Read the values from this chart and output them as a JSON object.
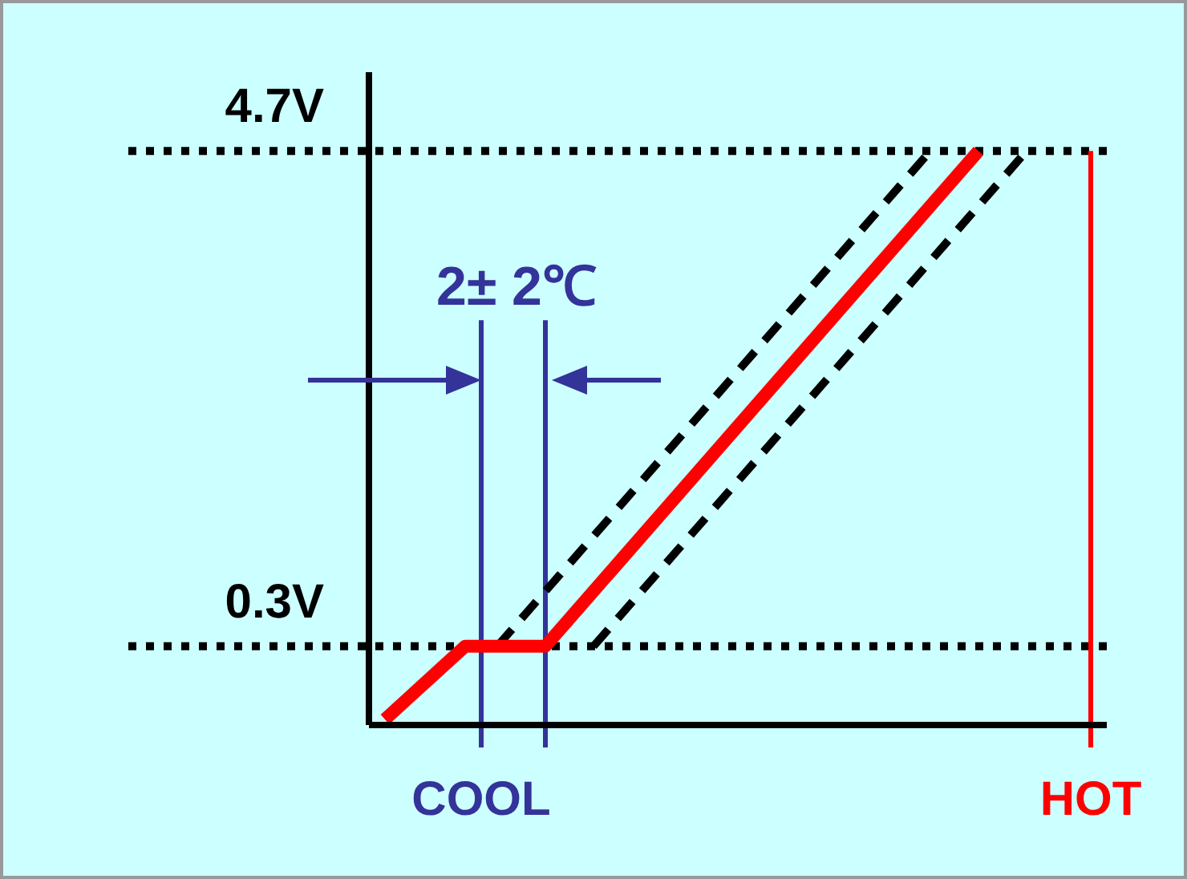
{
  "chart_data": {
    "type": "line",
    "annotations": [
      "2± 2℃"
    ],
    "categories": [
      null,
      null,
      null,
      null,
      null,
      null,
      null,
      "COOL",
      null,
      null,
      null,
      null,
      null,
      null,
      null,
      null,
      null,
      null,
      null,
      null,
      null,
      null,
      null,
      null,
      null,
      null,
      null,
      null,
      null,
      null,
      null,
      null,
      null,
      null,
      null,
      null,
      null,
      null,
      null,
      null,
      null,
      null,
      null,
      null,
      null,
      "HOT",
      null
    ],
    "ylim": [
      -0.4,
      5.4
    ],
    "yticks": [
      {
        "value": 0.3,
        "label": "0.3V"
      },
      {
        "value": 4.7,
        "label": "4.7V"
      }
    ],
    "marker": "none",
    "grid": false,
    "legend": false,
    "series": [
      {
        "color": "#000000",
        "line_style": "dashed",
        "values": [
          null,
          null,
          null,
          null,
          null,
          null,
          null,
          null,
          0.3,
          null,
          null,
          null,
          null,
          null,
          null,
          null,
          null,
          null,
          null,
          null,
          null,
          null,
          null,
          null,
          null,
          null,
          null,
          null,
          null,
          null,
          null,
          null,
          null,
          null,
          null,
          4.7,
          null,
          null,
          null,
          null,
          null,
          null,
          null,
          null,
          null,
          null,
          null
        ]
      },
      {
        "color": "#000000",
        "line_style": "dashed",
        "values": [
          null,
          null,
          null,
          null,
          null,
          null,
          null,
          null,
          null,
          null,
          null,
          null,
          null,
          null,
          0.3,
          null,
          null,
          null,
          null,
          null,
          null,
          null,
          null,
          null,
          null,
          null,
          null,
          null,
          null,
          null,
          null,
          null,
          null,
          null,
          null,
          null,
          null,
          null,
          null,
          null,
          null,
          4.7,
          null,
          null,
          null,
          null,
          null
        ]
      },
      {
        "color": "#ff0000",
        "line_style": "solid",
        "values": [
          null,
          -0.35,
          null,
          null,
          null,
          null,
          0.3,
          null,
          null,
          null,
          null,
          0.3,
          null,
          null,
          null,
          null,
          null,
          null,
          null,
          null,
          null,
          null,
          null,
          null,
          null,
          null,
          null,
          null,
          null,
          null,
          null,
          null,
          null,
          null,
          null,
          null,
          null,
          null,
          4.7,
          null,
          null,
          null,
          null,
          null,
          null,
          null,
          null
        ]
      }
    ],
    "ref_lines": [
      {
        "axis": "y",
        "value": 0.3,
        "line_style": "dotted",
        "color": "#000000"
      },
      {
        "axis": "y",
        "value": 4.7,
        "line_style": "dotted",
        "color": "#000000"
      },
      {
        "axis": "x",
        "value": "COOL",
        "color": "#333399"
      },
      {
        "axis": "x",
        "value": "HOT",
        "color": "#ff0000"
      }
    ]
  }
}
